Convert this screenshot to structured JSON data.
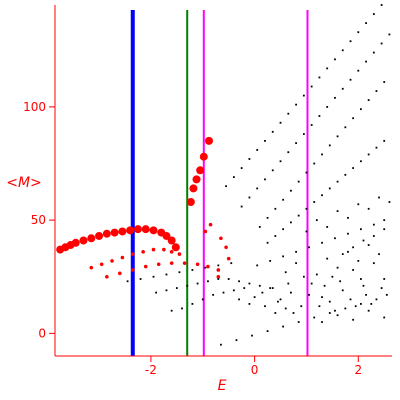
{
  "chart_data": {
    "type": "scatter",
    "xlabel": "E",
    "ylabel": "<M>",
    "xlim": [
      -3.85,
      2.65
    ],
    "ylim": [
      -10,
      145
    ],
    "x_ticks": [
      -2,
      0,
      2
    ],
    "y_ticks": [
      0,
      50,
      100
    ],
    "grid": false,
    "colors": {
      "axis": "#ff0000",
      "labels": "#ff0000",
      "red_points": "#ff0000",
      "black_points": "#000000"
    },
    "vertical_lines": [
      {
        "x": -2.35,
        "color": "#0000ff"
      },
      {
        "x": -1.3,
        "color": "#008000"
      },
      {
        "x": -0.98,
        "color": "#ff00ff"
      },
      {
        "x": 1.02,
        "color": "#ff00ff"
      }
    ],
    "series": [
      {
        "color": "#ff0000",
        "marker": "large",
        "points": [
          [
            -3.75,
            37
          ],
          [
            -3.65,
            38
          ],
          [
            -3.55,
            39
          ],
          [
            -3.45,
            40
          ],
          [
            -3.3,
            41
          ],
          [
            -3.15,
            42
          ],
          [
            -3.0,
            43
          ],
          [
            -2.85,
            44
          ],
          [
            -2.7,
            44.5
          ],
          [
            -2.55,
            45
          ],
          [
            -2.4,
            45.5
          ],
          [
            -2.25,
            46
          ],
          [
            -2.1,
            46
          ],
          [
            -1.95,
            45.5
          ],
          [
            -1.8,
            44.5
          ],
          [
            -1.7,
            43
          ],
          [
            -1.6,
            41
          ],
          [
            -1.52,
            38
          ],
          [
            -1.23,
            58
          ],
          [
            -1.18,
            64
          ],
          [
            -1.12,
            68
          ],
          [
            -1.05,
            72
          ],
          [
            -0.98,
            78
          ],
          [
            -0.88,
            85
          ]
        ]
      },
      {
        "color": "#ff0000",
        "marker": "small",
        "points": [
          [
            -3.15,
            29
          ],
          [
            -2.95,
            30.5
          ],
          [
            -2.75,
            32
          ],
          [
            -2.55,
            33.5
          ],
          [
            -2.35,
            35
          ],
          [
            -2.15,
            36
          ],
          [
            -1.95,
            37
          ],
          [
            -1.75,
            37
          ],
          [
            -1.6,
            36
          ],
          [
            -1.45,
            35
          ],
          [
            -2.85,
            25
          ],
          [
            -2.6,
            26.5
          ],
          [
            -2.35,
            28
          ],
          [
            -2.1,
            29.5
          ],
          [
            -1.85,
            30.5
          ],
          [
            -1.6,
            31
          ],
          [
            -1.35,
            31
          ],
          [
            -1.1,
            30.5
          ],
          [
            -0.9,
            29.5
          ],
          [
            -0.7,
            28
          ],
          [
            -0.95,
            45
          ],
          [
            -0.85,
            48
          ],
          [
            -0.65,
            42
          ],
          [
            -0.55,
            38
          ],
          [
            -0.5,
            33
          ],
          [
            -0.7,
            25
          ]
        ]
      },
      {
        "color": "#000000",
        "marker": "dot",
        "points": [
          [
            -0.55,
            65
          ],
          [
            -0.4,
            69
          ],
          [
            -0.25,
            73
          ],
          [
            -0.1,
            77
          ],
          [
            0.05,
            81
          ],
          [
            0.2,
            85
          ],
          [
            0.35,
            89
          ],
          [
            0.5,
            93
          ],
          [
            0.65,
            97
          ],
          [
            0.8,
            101
          ],
          [
            0.95,
            105
          ],
          [
            1.1,
            109
          ],
          [
            1.25,
            113
          ],
          [
            1.4,
            117
          ],
          [
            1.55,
            121
          ],
          [
            1.7,
            125
          ],
          [
            1.85,
            129
          ],
          [
            2.0,
            133
          ],
          [
            2.15,
            137
          ],
          [
            2.3,
            141
          ],
          [
            2.45,
            145
          ],
          [
            -0.25,
            56
          ],
          [
            -0.1,
            60
          ],
          [
            0.05,
            64
          ],
          [
            0.2,
            68
          ],
          [
            0.35,
            72
          ],
          [
            0.5,
            76
          ],
          [
            0.65,
            80
          ],
          [
            0.8,
            84
          ],
          [
            0.95,
            88
          ],
          [
            1.1,
            92
          ],
          [
            1.25,
            96
          ],
          [
            1.4,
            100
          ],
          [
            1.55,
            104
          ],
          [
            1.7,
            108
          ],
          [
            1.85,
            112
          ],
          [
            2.0,
            116
          ],
          [
            2.15,
            120
          ],
          [
            2.3,
            124
          ],
          [
            2.45,
            128
          ],
          [
            2.6,
            132
          ],
          [
            0.1,
            47
          ],
          [
            0.25,
            51
          ],
          [
            0.4,
            55
          ],
          [
            0.55,
            59
          ],
          [
            0.7,
            63
          ],
          [
            0.85,
            67
          ],
          [
            1.0,
            71
          ],
          [
            1.15,
            75
          ],
          [
            1.3,
            79
          ],
          [
            1.45,
            83
          ],
          [
            1.6,
            87
          ],
          [
            1.75,
            91
          ],
          [
            1.9,
            95
          ],
          [
            2.05,
            99
          ],
          [
            2.2,
            103
          ],
          [
            2.35,
            107
          ],
          [
            2.5,
            111
          ],
          [
            0.25,
            40
          ],
          [
            0.4,
            43
          ],
          [
            0.55,
            46
          ],
          [
            0.7,
            49
          ],
          [
            0.85,
            52
          ],
          [
            1.0,
            55
          ],
          [
            1.15,
            58
          ],
          [
            1.3,
            61
          ],
          [
            1.45,
            64
          ],
          [
            1.6,
            67
          ],
          [
            1.75,
            70
          ],
          [
            1.9,
            73
          ],
          [
            2.05,
            76
          ],
          [
            2.2,
            79
          ],
          [
            2.35,
            82
          ],
          [
            2.5,
            85
          ],
          [
            -2.45,
            23
          ],
          [
            -2.2,
            24
          ],
          [
            -1.95,
            25
          ],
          [
            -1.7,
            26
          ],
          [
            -1.45,
            27
          ],
          [
            -1.2,
            28
          ],
          [
            -0.95,
            29
          ],
          [
            -0.7,
            30
          ],
          [
            -0.45,
            31
          ],
          [
            -1.9,
            18
          ],
          [
            -1.7,
            19
          ],
          [
            -1.5,
            20
          ],
          [
            -1.3,
            21
          ],
          [
            -1.1,
            22
          ],
          [
            -0.9,
            23
          ],
          [
            -0.7,
            24
          ],
          [
            -0.5,
            24
          ],
          [
            -0.3,
            23
          ],
          [
            -0.1,
            22
          ],
          [
            0.1,
            21
          ],
          [
            0.3,
            20
          ],
          [
            -1.6,
            10
          ],
          [
            -1.4,
            11
          ],
          [
            -1.2,
            13
          ],
          [
            -1.0,
            15
          ],
          [
            -0.8,
            17
          ],
          [
            -0.6,
            18
          ],
          [
            -0.4,
            19
          ],
          [
            -0.2,
            20
          ],
          [
            -0.65,
            -5
          ],
          [
            -0.35,
            -3
          ],
          [
            -0.05,
            -1
          ],
          [
            0.25,
            1
          ],
          [
            0.55,
            3
          ],
          [
            0.85,
            5
          ],
          [
            1.15,
            7
          ],
          [
            1.45,
            9
          ],
          [
            1.75,
            11
          ],
          [
            2.05,
            13
          ],
          [
            2.35,
            15
          ],
          [
            0.05,
            30
          ],
          [
            0.3,
            32
          ],
          [
            0.55,
            34
          ],
          [
            0.8,
            36
          ],
          [
            1.05,
            38
          ],
          [
            1.3,
            40
          ],
          [
            1.55,
            42
          ],
          [
            1.8,
            44
          ],
          [
            2.05,
            46
          ],
          [
            2.3,
            48
          ],
          [
            2.5,
            50
          ],
          [
            0.5,
            15
          ],
          [
            0.7,
            18
          ],
          [
            0.9,
            12
          ],
          [
            1.1,
            22
          ],
          [
            1.3,
            16
          ],
          [
            1.5,
            25
          ],
          [
            1.7,
            19
          ],
          [
            1.9,
            28
          ],
          [
            2.1,
            21
          ],
          [
            2.3,
            31
          ],
          [
            2.5,
            24
          ],
          [
            0.6,
            27
          ],
          [
            0.8,
            31
          ],
          [
            1.2,
            26
          ],
          [
            1.4,
            33
          ],
          [
            1.6,
            29
          ],
          [
            1.8,
            36
          ],
          [
            2.0,
            32
          ],
          [
            2.2,
            39
          ],
          [
            2.4,
            35
          ],
          [
            1.3,
            5
          ],
          [
            1.6,
            8
          ],
          [
            1.9,
            6
          ],
          [
            2.2,
            10
          ],
          [
            2.5,
            7
          ],
          [
            0.2,
            12
          ],
          [
            0.4,
            9
          ],
          [
            0.6,
            11
          ],
          [
            -0.3,
            15
          ],
          [
            -0.1,
            13
          ],
          [
            0.0,
            16
          ],
          [
            0.15,
            18
          ],
          [
            0.35,
            20
          ],
          [
            0.45,
            14
          ],
          [
            0.65,
            22
          ],
          [
            0.75,
            9
          ],
          [
            0.95,
            25
          ],
          [
            1.05,
            17
          ],
          [
            1.25,
            12
          ],
          [
            1.35,
            21
          ],
          [
            1.45,
            14
          ],
          [
            1.55,
            10
          ],
          [
            1.65,
            23
          ],
          [
            1.85,
            15
          ],
          [
            1.95,
            12
          ],
          [
            2.05,
            24
          ],
          [
            2.15,
            17
          ],
          [
            2.25,
            13
          ],
          [
            2.45,
            20
          ],
          [
            2.55,
            17
          ],
          [
            1.0,
            45
          ],
          [
            1.2,
            50
          ],
          [
            1.4,
            47
          ],
          [
            1.6,
            54
          ],
          [
            1.8,
            51
          ],
          [
            2.0,
            57
          ],
          [
            2.2,
            55
          ],
          [
            2.4,
            60
          ],
          [
            2.6,
            58
          ],
          [
            1.7,
            35
          ],
          [
            1.9,
            38
          ],
          [
            2.1,
            41
          ],
          [
            2.3,
            43
          ],
          [
            2.5,
            46
          ]
        ]
      }
    ]
  }
}
